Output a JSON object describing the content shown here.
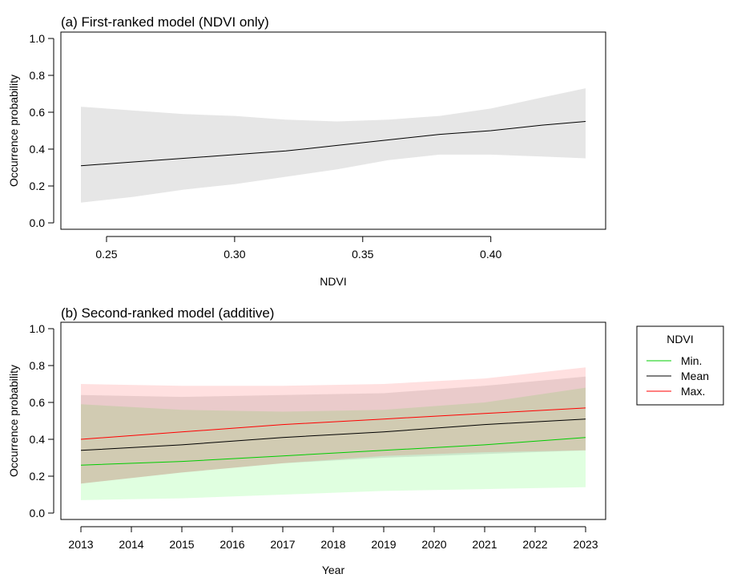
{
  "chart_data": [
    {
      "type": "area",
      "title": "(a) First-ranked model (NDVI only)",
      "xlabel": "NDVI",
      "ylabel": "Occurrence probability",
      "xlim": [
        0.24,
        0.437
      ],
      "ylim": [
        0,
        1
      ],
      "xticks": [
        0.25,
        0.3,
        0.35,
        0.4
      ],
      "xtick_labels": [
        "0.25",
        "0.30",
        "0.35",
        "0.40"
      ],
      "yticks": [
        0,
        0.2,
        0.4,
        0.6,
        0.8,
        1.0
      ],
      "ytick_labels": [
        "0.0",
        "0.2",
        "0.4",
        "0.6",
        "0.8",
        "1.0"
      ],
      "grid": false,
      "series": [
        {
          "color": "#000000",
          "band_color": "#e6e6e6",
          "x": [
            0.24,
            0.26,
            0.28,
            0.3,
            0.32,
            0.34,
            0.36,
            0.38,
            0.4,
            0.42,
            0.437
          ],
          "mean": [
            0.31,
            0.33,
            0.35,
            0.37,
            0.39,
            0.42,
            0.45,
            0.48,
            0.5,
            0.53,
            0.55
          ],
          "lower": [
            0.11,
            0.14,
            0.18,
            0.21,
            0.25,
            0.29,
            0.34,
            0.37,
            0.37,
            0.36,
            0.35
          ],
          "upper": [
            0.63,
            0.61,
            0.59,
            0.58,
            0.56,
            0.55,
            0.56,
            0.58,
            0.62,
            0.68,
            0.73
          ]
        }
      ]
    },
    {
      "type": "area",
      "title": "(b) Second-ranked model (additive)",
      "xlabel": "Year",
      "ylabel": "Occurrence probability",
      "xlim": [
        2013,
        2023
      ],
      "ylim": [
        0,
        1
      ],
      "xticks": [
        2013,
        2014,
        2015,
        2016,
        2017,
        2018,
        2019,
        2020,
        2021,
        2022,
        2023
      ],
      "xtick_labels": [
        "2013",
        "2014",
        "2015",
        "2016",
        "2017",
        "2018",
        "2019",
        "2020",
        "2021",
        "2022",
        "2023"
      ],
      "yticks": [
        0,
        0.2,
        0.4,
        0.6,
        0.8,
        1.0
      ],
      "ytick_labels": [
        "0.0",
        "0.2",
        "0.4",
        "0.6",
        "0.8",
        "1.0"
      ],
      "grid": false,
      "legend": {
        "title": "NDVI",
        "position": "right"
      },
      "series": [
        {
          "name": "Min.",
          "color": "#00cc00",
          "band_color": "rgba(0,255,0,0.12)",
          "x": [
            2013,
            2015,
            2017,
            2019,
            2021,
            2023
          ],
          "mean": [
            0.26,
            0.28,
            0.31,
            0.34,
            0.37,
            0.41
          ],
          "lower": [
            0.07,
            0.08,
            0.1,
            0.12,
            0.13,
            0.14
          ],
          "upper": [
            0.59,
            0.56,
            0.55,
            0.56,
            0.6,
            0.68
          ]
        },
        {
          "name": "Mean",
          "color": "#000000",
          "band_color": "rgba(60,60,60,0.12)",
          "x": [
            2013,
            2015,
            2017,
            2019,
            2021,
            2023
          ],
          "mean": [
            0.34,
            0.37,
            0.41,
            0.44,
            0.48,
            0.51
          ],
          "lower": [
            0.16,
            0.22,
            0.27,
            0.3,
            0.32,
            0.34
          ],
          "upper": [
            0.64,
            0.63,
            0.64,
            0.65,
            0.69,
            0.74
          ]
        },
        {
          "name": "Max.",
          "color": "#ff0000",
          "band_color": "rgba(255,0,0,0.12)",
          "x": [
            2013,
            2015,
            2017,
            2019,
            2021,
            2023
          ],
          "mean": [
            0.4,
            0.44,
            0.48,
            0.51,
            0.54,
            0.57
          ],
          "lower": [
            0.16,
            0.22,
            0.27,
            0.31,
            0.33,
            0.34
          ],
          "upper": [
            0.7,
            0.69,
            0.69,
            0.7,
            0.73,
            0.79
          ]
        }
      ]
    }
  ]
}
